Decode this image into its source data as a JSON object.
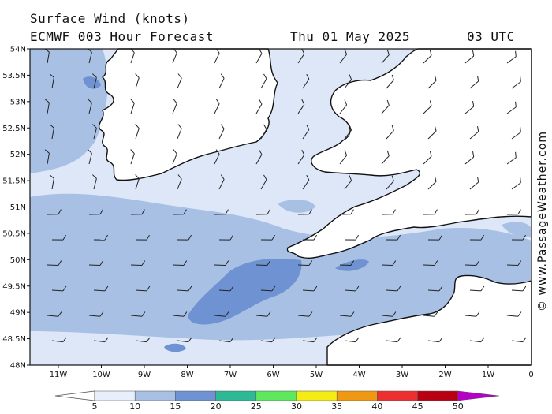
{
  "header": {
    "title": "Surface Wind (knots)",
    "model": "ECMWF 003 Hour Forecast",
    "date": "Thu 01 May 2025",
    "utc": "03 UTC"
  },
  "credit": "© www.PassageWeather.com",
  "axes": {
    "lat_labels": [
      "54N",
      "53.5N",
      "53N",
      "52.5N",
      "52N",
      "51.5N",
      "51N",
      "50.5N",
      "50N",
      "49.5N",
      "49N",
      "48.5N",
      "48N"
    ],
    "lon_labels": [
      "11W",
      "10W",
      "9W",
      "8W",
      "7W",
      "6W",
      "5W",
      "4W",
      "3W",
      "2W",
      "1W",
      "0"
    ]
  },
  "legend": {
    "labels": [
      "5",
      "10",
      "15",
      "20",
      "25",
      "30",
      "35",
      "40",
      "45",
      "50"
    ],
    "colors": [
      "#e8eefa",
      "#a8c0e4",
      "#6f93d2",
      "#2db896",
      "#5ee85e",
      "#f4ec12",
      "#f09812",
      "#ec3030",
      "#b80012",
      "#b400c8"
    ]
  },
  "colors": {
    "land": "#ffffff",
    "sea_light": "#dde7f7",
    "sea_mid": "#a8c0e4",
    "sea_dark": "#6f93d2"
  }
}
